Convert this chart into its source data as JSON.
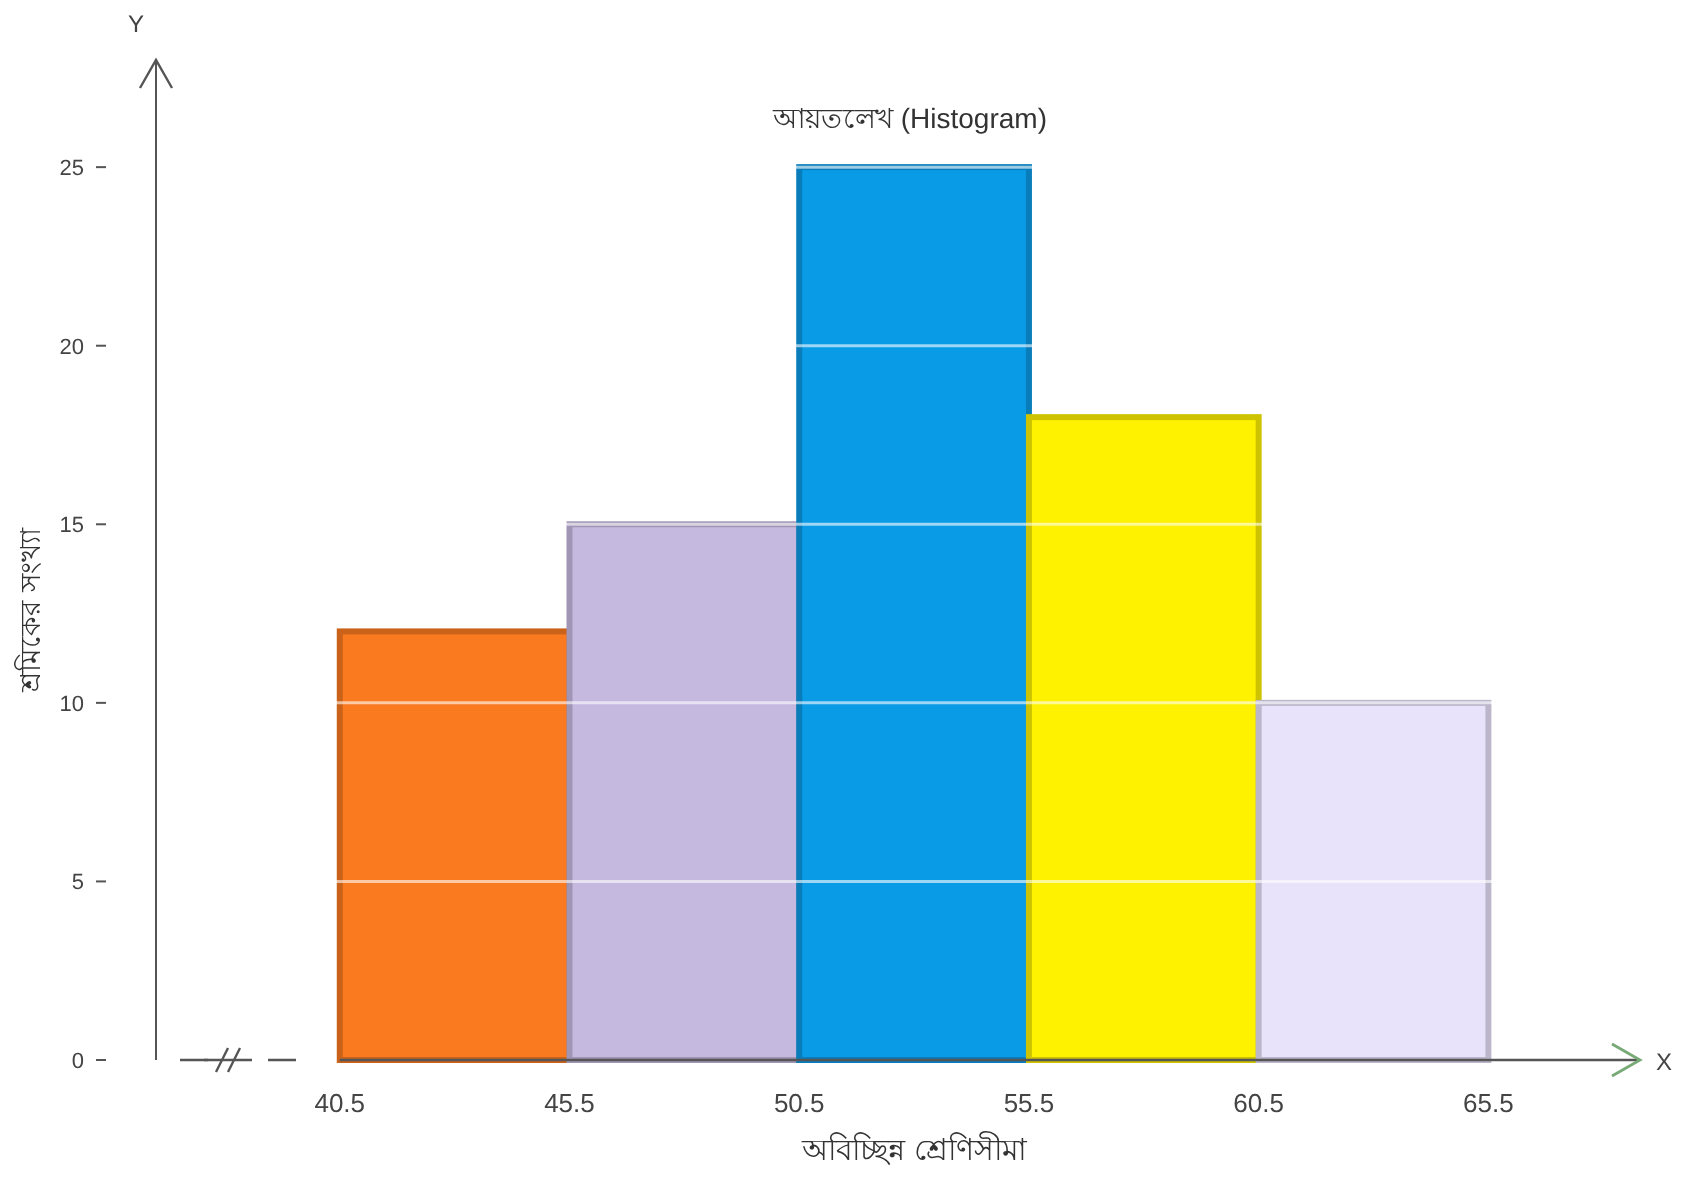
{
  "chart_data": {
    "type": "histogram",
    "title": "আয়তলেখ (Histogram)",
    "xlabel": "অবিচ্ছিন্ন শ্রেণিসীমা",
    "ylabel": "শ্রমিকের সংখ্যা",
    "annotations": [
      "Y",
      "X"
    ],
    "bins": [
      40.5,
      45.5,
      50.5,
      55.5,
      60.5,
      65.5
    ],
    "values": [
      12,
      15,
      25,
      18,
      10
    ],
    "colors": [
      "#fa7a20",
      "#c6b9e0",
      "#0a9be6",
      "#fff200",
      "#e9e2fb"
    ],
    "xlim": [
      36.5,
      68.8
    ],
    "ylim": [
      0,
      28
    ],
    "xticks": [
      40.5,
      45.5,
      50.5,
      55.5,
      60.5,
      65.5
    ],
    "yticks": [
      0,
      5,
      10,
      15,
      20,
      25
    ],
    "grid": "y"
  }
}
